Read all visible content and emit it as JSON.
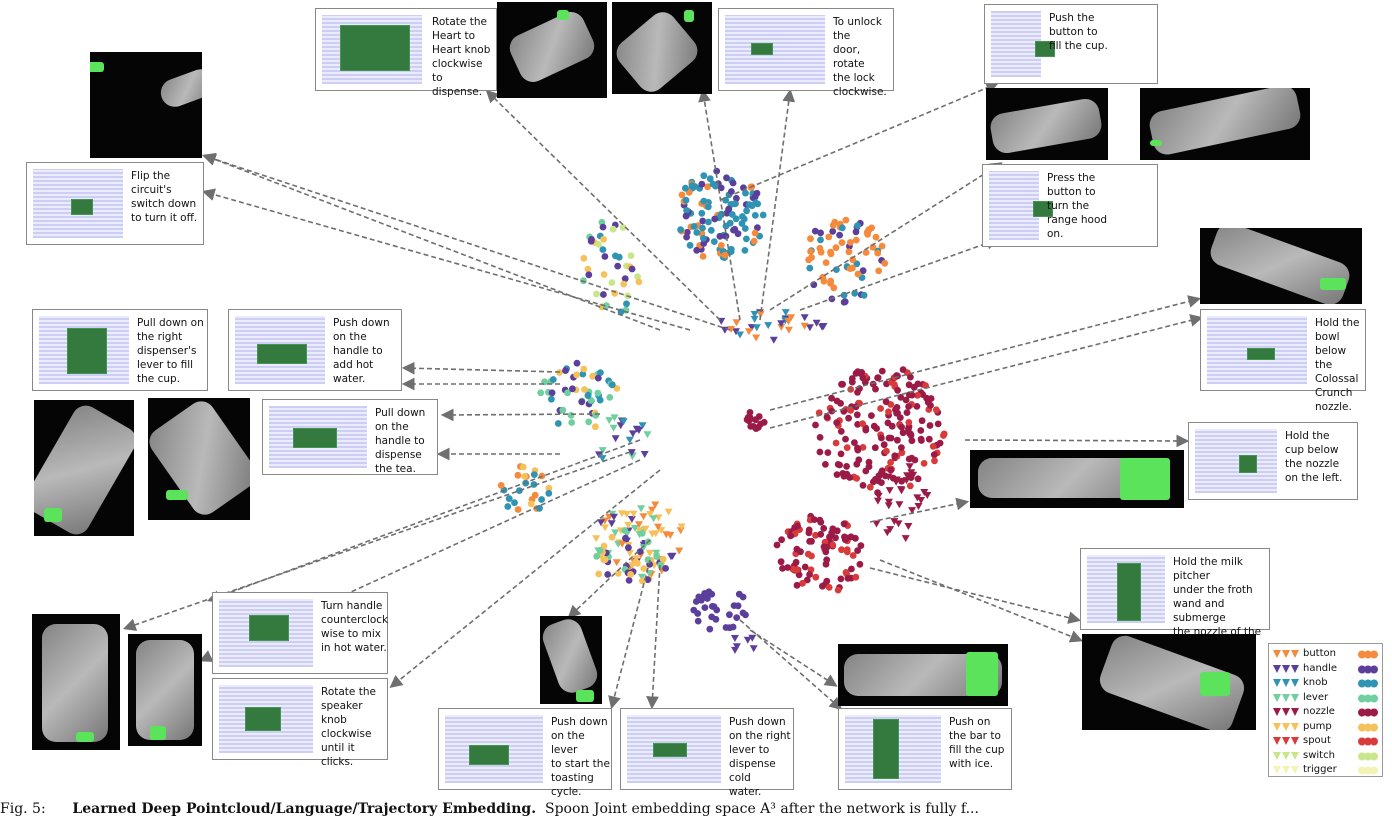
{
  "figure": {
    "caption_prefix": "Fig. 5:",
    "caption_bold": "Learned Deep Pointcloud/Language/Trajectory Embedding.",
    "caption_rest": "Spoon Joint embedding space A³ after the network is fully f..."
  },
  "instructions": [
    {
      "text": "Rotate the\nHeart to\nHeart knob\nclockwise to\ndispense."
    },
    {
      "text": "To unlock the\ndoor, rotate\nthe lock\nclockwise."
    },
    {
      "text": "Push the\nbutton to\nfill the cup."
    },
    {
      "text": "Press the\nbutton to\nturn the\nrange hood\non."
    },
    {
      "text": "Flip the\ncircuit's\nswitch down\nto turn it off."
    },
    {
      "text": "Hold the\nbowl below\nthe Colossal\nCrunch\nnozzle."
    },
    {
      "text": "Pull down on\nthe right\ndispenser's\nlever to fill\nthe cup."
    },
    {
      "text": "Push down\non the\nhandle to\nadd hot\nwater."
    },
    {
      "text": "Pull down\non the\nhandle to\ndispense\nthe tea."
    },
    {
      "text": "Hold the\ncup below\nthe nozzle\non the left."
    },
    {
      "text": "Hold the milk pitcher\nunder the froth\nwand and submerge\nthe nozzle of the\nwand into the milk."
    },
    {
      "text": "Turn handle\ncounterclock\nwise to mix\nin hot water."
    },
    {
      "text": "Rotate the\nspeaker\nknob\nclockwise\nuntil it clicks."
    },
    {
      "text": "Push down\non the lever\nto start the\ntoasting\ncycle."
    },
    {
      "text": "Push down\non the right\nlever to\ndispense cold\nwater."
    },
    {
      "text": "Push on\nthe bar to\nfill the cup\nwith ice."
    }
  ],
  "legend": {
    "items": [
      {
        "label": "button",
        "color": "#f58a3c"
      },
      {
        "label": "handle",
        "color": "#5b3f9a"
      },
      {
        "label": "knob",
        "color": "#2f93b3"
      },
      {
        "label": "lever",
        "color": "#6fcf9f"
      },
      {
        "label": "nozzle",
        "color": "#9b1b46"
      },
      {
        "label": "pump",
        "color": "#f6c15a"
      },
      {
        "label": "spout",
        "color": "#d93b3b"
      },
      {
        "label": "switch",
        "color": "#c9e68a"
      },
      {
        "label": "trigger",
        "color": "#f3f3b5"
      }
    ]
  },
  "colors": {
    "arrow": "#6f6f6f",
    "voxel_bg": "#d8d8f7",
    "voxel_green": "#1f6b2a",
    "photo_bg": "#050505"
  }
}
